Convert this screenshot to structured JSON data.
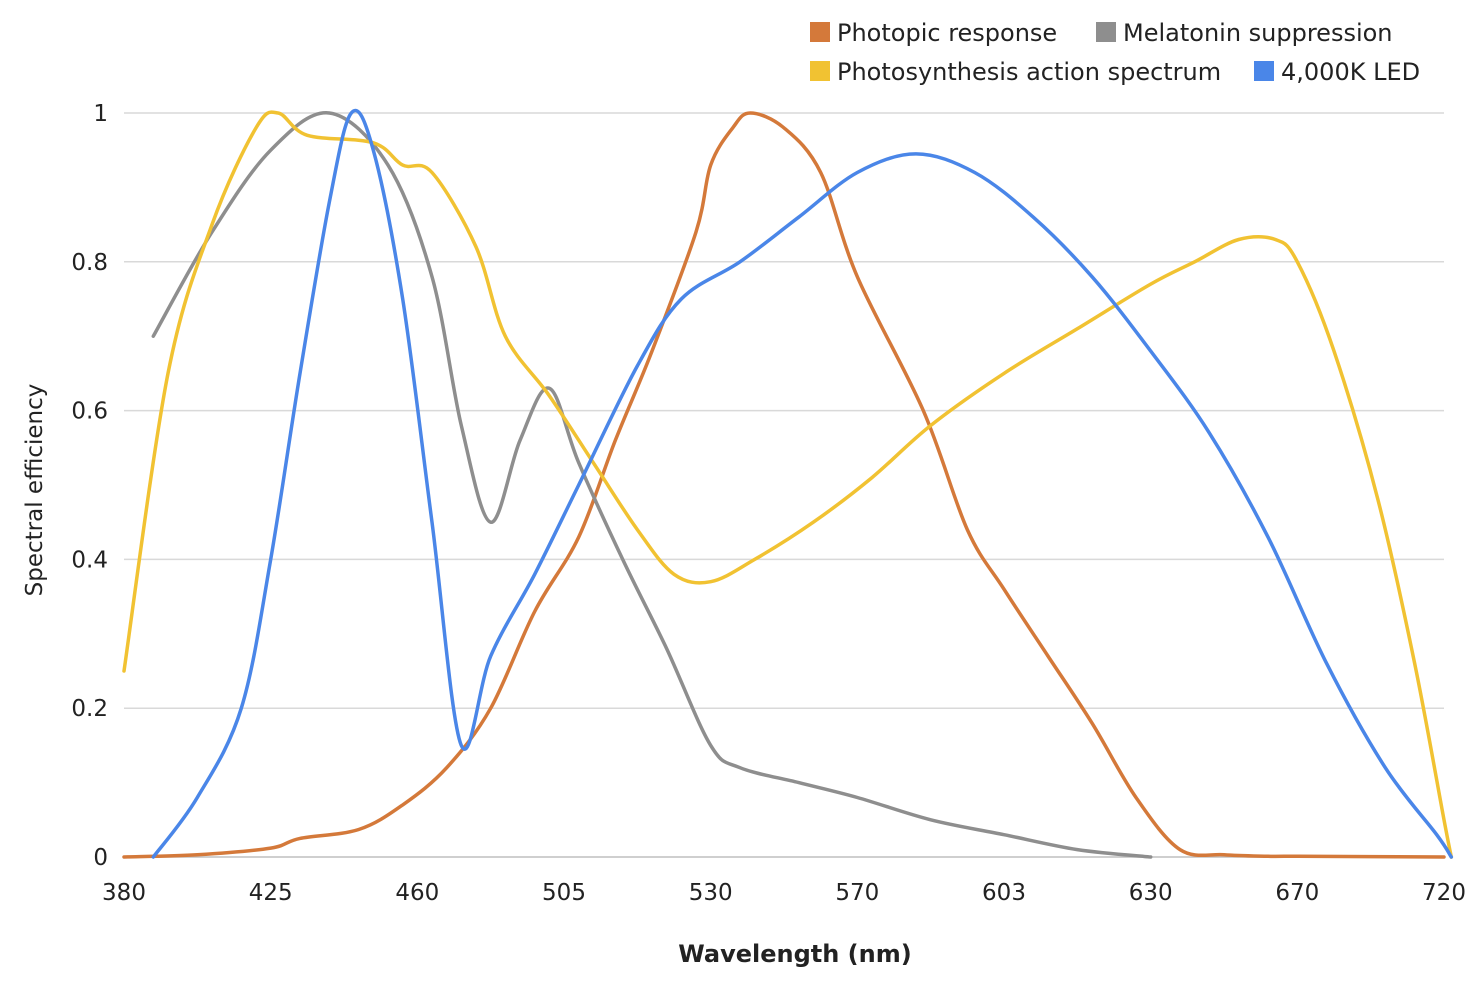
{
  "chart_data": {
    "type": "line",
    "title": "",
    "xlabel": "Wavelength (nm)",
    "ylabel": "Spectral efficiency",
    "x_categories": [
      "380",
      "425",
      "460",
      "505",
      "530",
      "570",
      "603",
      "630",
      "670",
      "720"
    ],
    "ylim": [
      0,
      1
    ],
    "yticks": [
      "0",
      "0.2",
      "0.4",
      "0.6",
      "0.8",
      "1"
    ],
    "grid": "horizontal",
    "legend_position": "top-right",
    "series": [
      {
        "name": "Photopic response",
        "color": "#d4793a",
        "points": [
          [
            0,
            0
          ],
          [
            0.5,
            0.003
          ],
          [
            1,
            0.012
          ],
          [
            1.2,
            0.025
          ],
          [
            1.6,
            0.037
          ],
          [
            1.9,
            0.07
          ],
          [
            2.2,
            0.12
          ],
          [
            2.5,
            0.2
          ],
          [
            2.8,
            0.33
          ],
          [
            3.1,
            0.43
          ],
          [
            3.35,
            0.56
          ],
          [
            3.6,
            0.68
          ],
          [
            3.9,
            0.84
          ],
          [
            4.0,
            0.93
          ],
          [
            4.15,
            0.98
          ],
          [
            4.27,
            1.0
          ],
          [
            4.5,
            0.98
          ],
          [
            4.75,
            0.92
          ],
          [
            5.0,
            0.78
          ],
          [
            5.45,
            0.6
          ],
          [
            5.75,
            0.44
          ],
          [
            6.0,
            0.36
          ],
          [
            6.3,
            0.27
          ],
          [
            6.6,
            0.18
          ],
          [
            6.9,
            0.08
          ],
          [
            7.2,
            0.01
          ],
          [
            7.5,
            0.003
          ],
          [
            7.8,
            0.001
          ],
          [
            8.0,
            0.001
          ],
          [
            9.0,
            0
          ]
        ]
      },
      {
        "name": "Melatonin suppression",
        "color": "#8e8e8e",
        "points": [
          [
            0.2,
            0.7
          ],
          [
            0.6,
            0.84
          ],
          [
            1.0,
            0.95
          ],
          [
            1.4,
            1.0
          ],
          [
            1.8,
            0.93
          ],
          [
            2.1,
            0.78
          ],
          [
            2.3,
            0.58
          ],
          [
            2.5,
            0.45
          ],
          [
            2.7,
            0.56
          ],
          [
            2.9,
            0.63
          ],
          [
            3.1,
            0.53
          ],
          [
            3.4,
            0.4
          ],
          [
            3.7,
            0.28
          ],
          [
            4.0,
            0.15
          ],
          [
            4.2,
            0.12
          ],
          [
            4.6,
            0.1
          ],
          [
            5.0,
            0.08
          ],
          [
            5.5,
            0.05
          ],
          [
            6.0,
            0.03
          ],
          [
            6.5,
            0.01
          ],
          [
            7.0,
            0
          ]
        ]
      },
      {
        "name": "Photosynthesis action spectrum",
        "color": "#f1c232",
        "points": [
          [
            0,
            0.25
          ],
          [
            0.3,
            0.65
          ],
          [
            0.6,
            0.85
          ],
          [
            0.9,
            0.98
          ],
          [
            1.05,
            1.0
          ],
          [
            1.25,
            0.97
          ],
          [
            1.7,
            0.96
          ],
          [
            1.9,
            0.93
          ],
          [
            2.1,
            0.92
          ],
          [
            2.4,
            0.82
          ],
          [
            2.6,
            0.7
          ],
          [
            2.9,
            0.62
          ],
          [
            3.2,
            0.53
          ],
          [
            3.5,
            0.44
          ],
          [
            3.75,
            0.38
          ],
          [
            4.0,
            0.37
          ],
          [
            4.3,
            0.4
          ],
          [
            4.7,
            0.45
          ],
          [
            5.1,
            0.51
          ],
          [
            5.5,
            0.58
          ],
          [
            6.0,
            0.65
          ],
          [
            6.5,
            0.71
          ],
          [
            7.0,
            0.77
          ],
          [
            7.3,
            0.8
          ],
          [
            7.6,
            0.83
          ],
          [
            7.85,
            0.83
          ],
          [
            8.0,
            0.8
          ],
          [
            8.25,
            0.68
          ],
          [
            8.55,
            0.48
          ],
          [
            8.8,
            0.26
          ],
          [
            9.0,
            0.05
          ],
          [
            9.05,
            0
          ]
        ]
      },
      {
        "name": "4,000K LED",
        "color": "#4a86e8",
        "points": [
          [
            0.2,
            0
          ],
          [
            0.5,
            0.08
          ],
          [
            0.8,
            0.2
          ],
          [
            1.0,
            0.4
          ],
          [
            1.2,
            0.65
          ],
          [
            1.4,
            0.88
          ],
          [
            1.55,
            1.0
          ],
          [
            1.7,
            0.95
          ],
          [
            1.9,
            0.75
          ],
          [
            2.1,
            0.45
          ],
          [
            2.3,
            0.15
          ],
          [
            2.5,
            0.27
          ],
          [
            2.8,
            0.38
          ],
          [
            3.1,
            0.5
          ],
          [
            3.5,
            0.66
          ],
          [
            3.8,
            0.75
          ],
          [
            4.2,
            0.8
          ],
          [
            4.6,
            0.86
          ],
          [
            5.0,
            0.92
          ],
          [
            5.4,
            0.945
          ],
          [
            5.8,
            0.92
          ],
          [
            6.2,
            0.86
          ],
          [
            6.6,
            0.78
          ],
          [
            7.0,
            0.68
          ],
          [
            7.4,
            0.57
          ],
          [
            7.8,
            0.43
          ],
          [
            8.2,
            0.26
          ],
          [
            8.6,
            0.12
          ],
          [
            8.95,
            0.03
          ],
          [
            9.05,
            0
          ]
        ]
      }
    ]
  }
}
